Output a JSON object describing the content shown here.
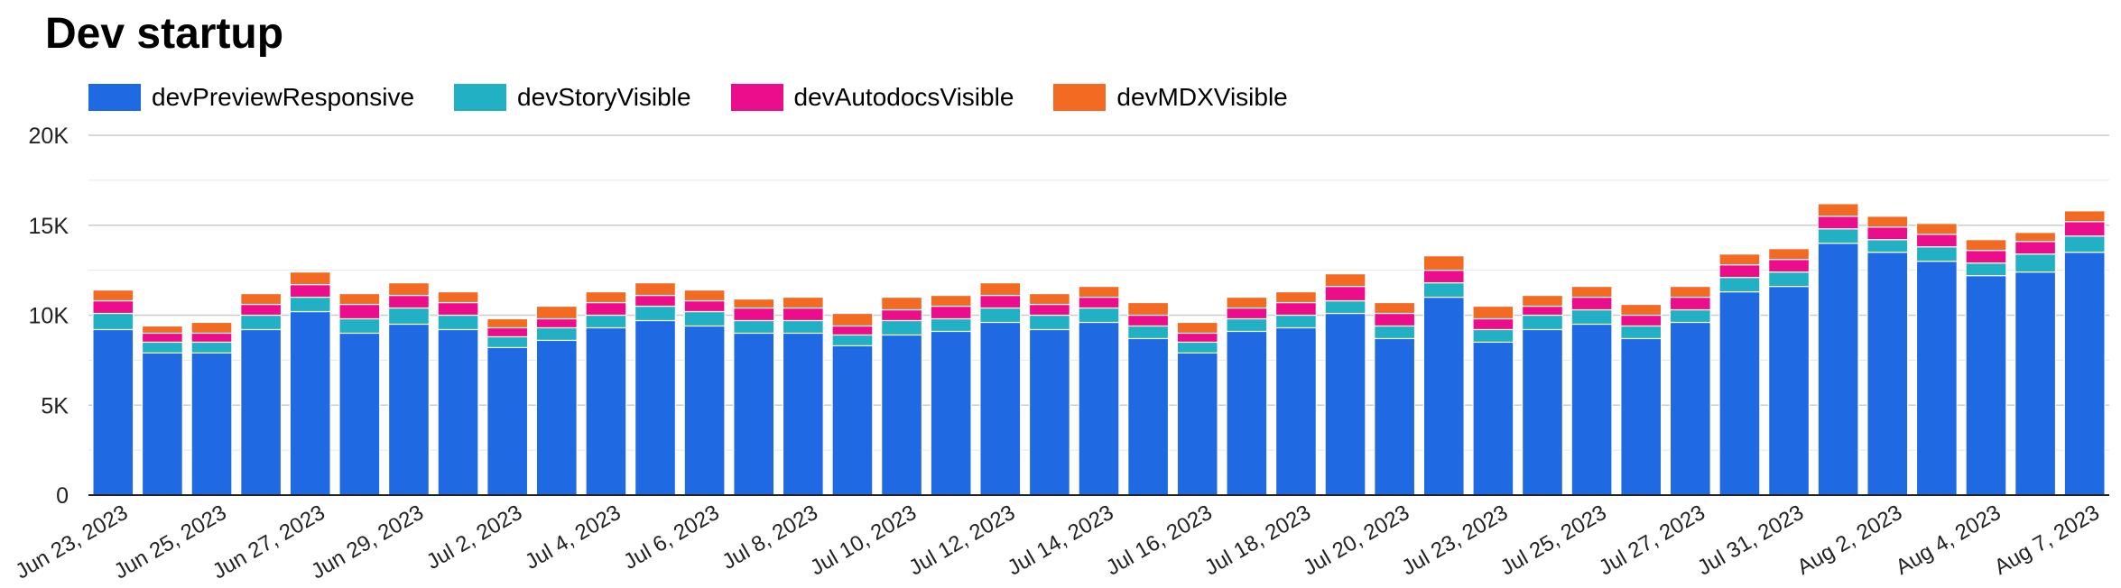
{
  "title": "Dev startup",
  "chart_data": {
    "type": "bar",
    "stacked": true,
    "title": "Dev startup",
    "legend_position": "top-left",
    "grid": true,
    "ylim": [
      0,
      20000
    ],
    "y_ticks": [
      {
        "value": 0,
        "label": "0"
      },
      {
        "value": 5000,
        "label": "5K"
      },
      {
        "value": 10000,
        "label": "10K"
      },
      {
        "value": 15000,
        "label": "15K"
      },
      {
        "value": 20000,
        "label": "20K"
      }
    ],
    "x_tick_labels": [
      {
        "index": 0,
        "label": "Jun 23, 2023"
      },
      {
        "index": 2,
        "label": "Jun 25, 2023"
      },
      {
        "index": 4,
        "label": "Jun 27, 2023"
      },
      {
        "index": 6,
        "label": "Jun 29, 2023"
      },
      {
        "index": 8,
        "label": "Jul 2, 2023"
      },
      {
        "index": 10,
        "label": "Jul 4, 2023"
      },
      {
        "index": 12,
        "label": "Jul 6, 2023"
      },
      {
        "index": 14,
        "label": "Jul 8, 2023"
      },
      {
        "index": 16,
        "label": "Jul 10, 2023"
      },
      {
        "index": 18,
        "label": "Jul 12, 2023"
      },
      {
        "index": 20,
        "label": "Jul 14, 2023"
      },
      {
        "index": 22,
        "label": "Jul 16, 2023"
      },
      {
        "index": 24,
        "label": "Jul 18, 2023"
      },
      {
        "index": 26,
        "label": "Jul 20, 2023"
      },
      {
        "index": 28,
        "label": "Jul 23, 2023"
      },
      {
        "index": 30,
        "label": "Jul 25, 2023"
      },
      {
        "index": 32,
        "label": "Jul 27, 2023"
      },
      {
        "index": 34,
        "label": "Jul 31, 2023"
      },
      {
        "index": 36,
        "label": "Aug 2, 2023"
      },
      {
        "index": 38,
        "label": "Aug 4, 2023"
      },
      {
        "index": 40,
        "label": "Aug 7, 2023"
      }
    ],
    "bar_count": 41,
    "series": [
      {
        "name": "devPreviewResponsive",
        "color": "#1f6ae3",
        "values": [
          9200,
          7900,
          7900,
          9200,
          10200,
          9000,
          9500,
          9200,
          8200,
          8600,
          9300,
          9700,
          9400,
          9000,
          9000,
          8300,
          8900,
          9100,
          9600,
          9200,
          9600,
          8700,
          7900,
          9100,
          9300,
          10100,
          8700,
          11000,
          8500,
          9200,
          9500,
          8700,
          9600,
          11300,
          11600,
          14000,
          13500,
          13000,
          12200,
          12400,
          13500
        ]
      },
      {
        "name": "devStoryVisible",
        "color": "#22b0c4",
        "values": [
          900,
          600,
          600,
          800,
          800,
          800,
          900,
          800,
          600,
          700,
          700,
          800,
          800,
          700,
          700,
          600,
          800,
          700,
          800,
          800,
          800,
          700,
          600,
          700,
          700,
          700,
          700,
          800,
          700,
          800,
          800,
          700,
          700,
          800,
          800,
          800,
          700,
          800,
          700,
          1000,
          900
        ]
      },
      {
        "name": "devAutodocsVisible",
        "color": "#ec0d8d",
        "values": [
          700,
          500,
          500,
          600,
          700,
          800,
          700,
          700,
          500,
          500,
          700,
          600,
          600,
          700,
          700,
          500,
          600,
          700,
          700,
          600,
          600,
          600,
          500,
          600,
          700,
          800,
          700,
          700,
          600,
          500,
          700,
          600,
          700,
          700,
          700,
          700,
          700,
          700,
          700,
          700,
          800
        ]
      },
      {
        "name": "devMDXVisible",
        "color": "#f36b23",
        "values": [
          600,
          400,
          600,
          600,
          700,
          600,
          700,
          600,
          500,
          700,
          600,
          700,
          600,
          500,
          600,
          700,
          700,
          600,
          700,
          600,
          600,
          700,
          600,
          600,
          600,
          700,
          600,
          800,
          700,
          600,
          600,
          600,
          600,
          600,
          600,
          700,
          600,
          600,
          600,
          500,
          600
        ]
      }
    ]
  }
}
